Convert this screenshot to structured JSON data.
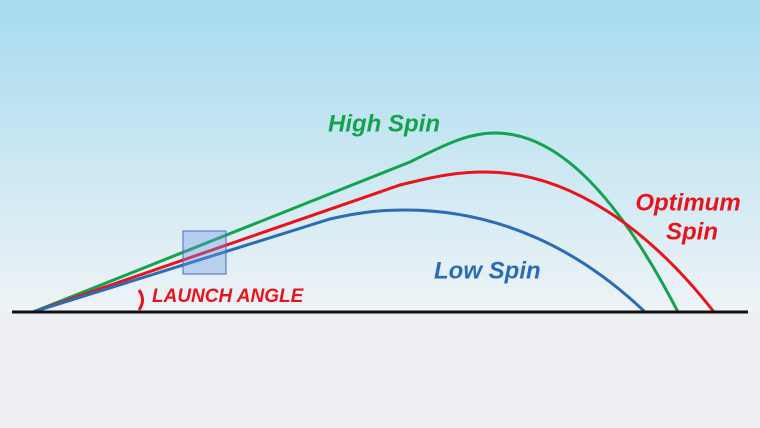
{
  "labels": {
    "high_spin": "High Spin",
    "optimum_spin": [
      "Optimum",
      "Spin"
    ],
    "low_spin": "Low Spin",
    "launch_angle": "LAUNCH ANGLE"
  }
}
